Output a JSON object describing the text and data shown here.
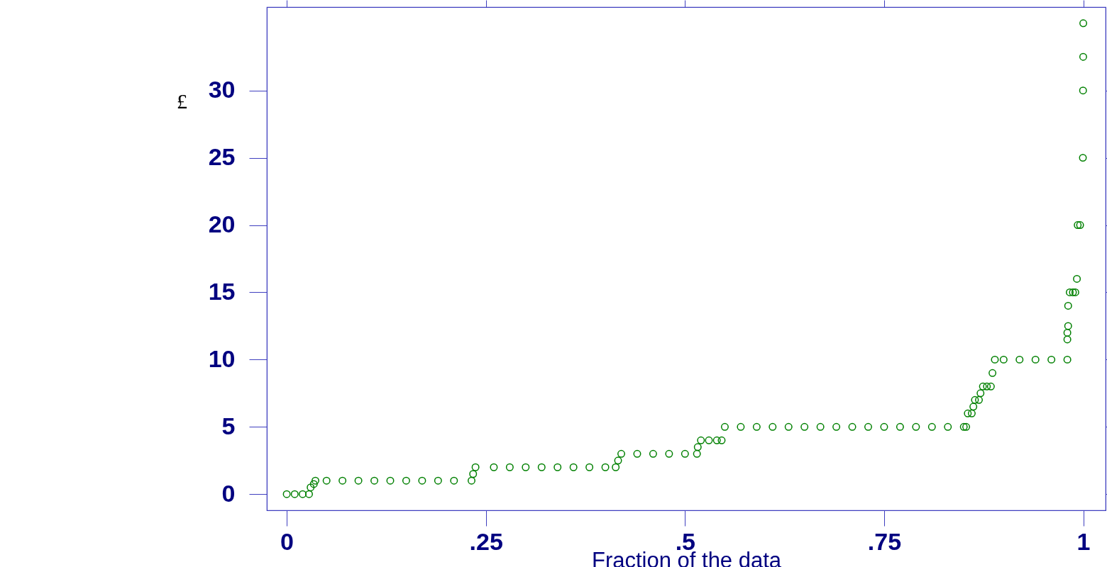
{
  "chart_data": {
    "type": "scatter",
    "xlabel": "Fraction of the data",
    "ylabel": "£",
    "x": [
      0,
      0.01,
      0.02,
      0.028,
      0.03,
      0.034,
      0.036,
      0.05,
      0.07,
      0.09,
      0.11,
      0.13,
      0.15,
      0.17,
      0.19,
      0.21,
      0.232,
      0.234,
      0.237,
      0.26,
      0.28,
      0.3,
      0.32,
      0.34,
      0.36,
      0.38,
      0.4,
      0.413,
      0.416,
      0.42,
      0.44,
      0.46,
      0.48,
      0.5,
      0.515,
      0.516,
      0.52,
      0.53,
      0.54,
      0.546,
      0.55,
      0.57,
      0.59,
      0.61,
      0.63,
      0.65,
      0.67,
      0.69,
      0.71,
      0.73,
      0.75,
      0.77,
      0.79,
      0.81,
      0.83,
      0.85,
      0.853,
      0.855,
      0.86,
      0.862,
      0.864,
      0.869,
      0.871,
      0.874,
      0.879,
      0.884,
      0.886,
      0.889,
      0.9,
      0.92,
      0.94,
      0.96,
      0.98,
      0.98,
      0.98,
      0.981,
      0.981,
      0.983,
      0.987,
      0.99,
      0.992,
      0.993,
      0.996,
      0.9995,
      0.9997,
      0.9999,
      1
    ],
    "series": [
      {
        "color": "#008000",
        "values": [
          0,
          0,
          0,
          0,
          0.5,
          0.75,
          1,
          1,
          1,
          1,
          1,
          1,
          1,
          1,
          1,
          1,
          1,
          1.5,
          2,
          2,
          2,
          2,
          2,
          2,
          2,
          2,
          2,
          2,
          2.5,
          3,
          3,
          3,
          3,
          3,
          3,
          3.5,
          4,
          4,
          4,
          4,
          5,
          5,
          5,
          5,
          5,
          5,
          5,
          5,
          5,
          5,
          5,
          5,
          5,
          5,
          5,
          5,
          5,
          6,
          6,
          6.5,
          7,
          7,
          7.5,
          8,
          8,
          8,
          9,
          10,
          10,
          10,
          10,
          10,
          10,
          11.5,
          12,
          12.5,
          14,
          15,
          15,
          15,
          16,
          20,
          20,
          25,
          30,
          32.5,
          35
        ]
      }
    ],
    "xlim": [
      -0.025,
      1.028
    ],
    "ylim": [
      -1.2,
      36.2
    ],
    "xticks": [
      0,
      {
        "value": 0.25,
        "label": ".25"
      },
      {
        "value": 0.5,
        "label": ".5"
      },
      {
        "value": 0.75,
        "label": ".75"
      },
      1
    ],
    "yticks": [
      0,
      5,
      10,
      15,
      20,
      25,
      30
    ],
    "marker": "circle",
    "grid": false
  }
}
